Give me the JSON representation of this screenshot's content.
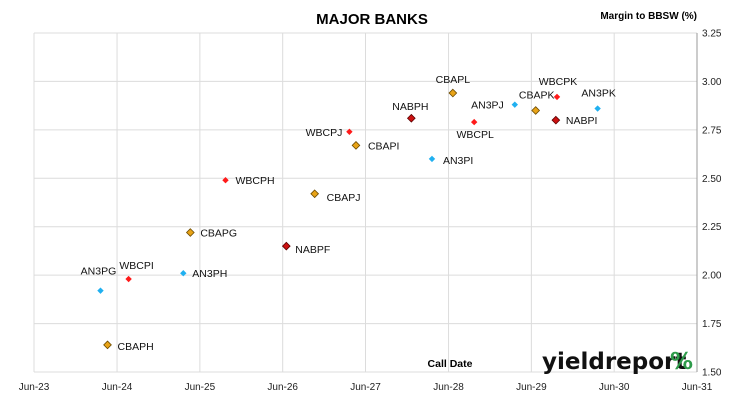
{
  "brand": {
    "name": "yieldreport",
    "symbol": "%"
  },
  "colors": {
    "WBC": "#ff1a1a",
    "CBA": "#e8a317",
    "NAB": "#cc1111",
    "ANZ": "#20b0f0",
    "grid": "#dcdcdc",
    "brand_green": "#2e9b4a",
    "brand_red": "#d8262c"
  },
  "chart_data": {
    "type": "scatter",
    "title": "MAJOR BANKS",
    "ylabel": "Margin to BBSW (%)",
    "xlabel": "Call Date",
    "ylim": [
      1.5,
      3.25
    ],
    "yticks": [
      "1.50",
      "1.75",
      "2.00",
      "2.25",
      "2.50",
      "2.75",
      "3.00",
      "3.25"
    ],
    "xlim": [
      "2023-06-01",
      "2031-06-01"
    ],
    "xticks": [
      "Jun-23",
      "Jun-24",
      "Jun-25",
      "Jun-26",
      "Jun-27",
      "Jun-28",
      "Jun-29",
      "Jun-30",
      "Jun-31"
    ],
    "grid": true,
    "legend": "none",
    "y_axis_side": "right",
    "points": [
      {
        "label": "AN3PG",
        "issuer": "ANZ",
        "x": "2024-03-20",
        "y": 1.92
      },
      {
        "label": "WBCPI",
        "issuer": "WBC",
        "x": "2024-07-22",
        "y": 1.98
      },
      {
        "label": "CBAPH",
        "issuer": "CBA",
        "x": "2024-04-20",
        "y": 1.64
      },
      {
        "label": "AN3PH",
        "issuer": "ANZ",
        "x": "2025-03-20",
        "y": 2.01
      },
      {
        "label": "CBAPG",
        "issuer": "CBA",
        "x": "2025-04-20",
        "y": 2.22
      },
      {
        "label": "WBCPH",
        "issuer": "WBC",
        "x": "2025-09-22",
        "y": 2.49
      },
      {
        "label": "NABPF",
        "issuer": "NAB",
        "x": "2026-06-17",
        "y": 2.15
      },
      {
        "label": "CBAPJ",
        "issuer": "CBA",
        "x": "2026-10-20",
        "y": 2.42
      },
      {
        "label": "WBCPJ",
        "issuer": "WBC",
        "x": "2027-03-22",
        "y": 2.74
      },
      {
        "label": "CBAPI",
        "issuer": "CBA",
        "x": "2027-04-20",
        "y": 2.67
      },
      {
        "label": "NABPH",
        "issuer": "NAB",
        "x": "2027-12-20",
        "y": 2.81
      },
      {
        "label": "AN3PI",
        "issuer": "ANZ",
        "x": "2028-03-20",
        "y": 2.6
      },
      {
        "label": "CBAPL",
        "issuer": "CBA",
        "x": "2028-06-20",
        "y": 2.94
      },
      {
        "label": "WBCPL",
        "issuer": "WBC",
        "x": "2028-09-22",
        "y": 2.79
      },
      {
        "label": "AN3PJ",
        "issuer": "ANZ",
        "x": "2029-03-20",
        "y": 2.88
      },
      {
        "label": "CBAPK",
        "issuer": "CBA",
        "x": "2029-06-20",
        "y": 2.85
      },
      {
        "label": "WBCPK",
        "issuer": "WBC",
        "x": "2029-09-22",
        "y": 2.92
      },
      {
        "label": "NABPI",
        "issuer": "NAB",
        "x": "2029-09-17",
        "y": 2.8
      },
      {
        "label": "AN3PK",
        "issuer": "ANZ",
        "x": "2030-03-20",
        "y": 2.86
      }
    ]
  }
}
